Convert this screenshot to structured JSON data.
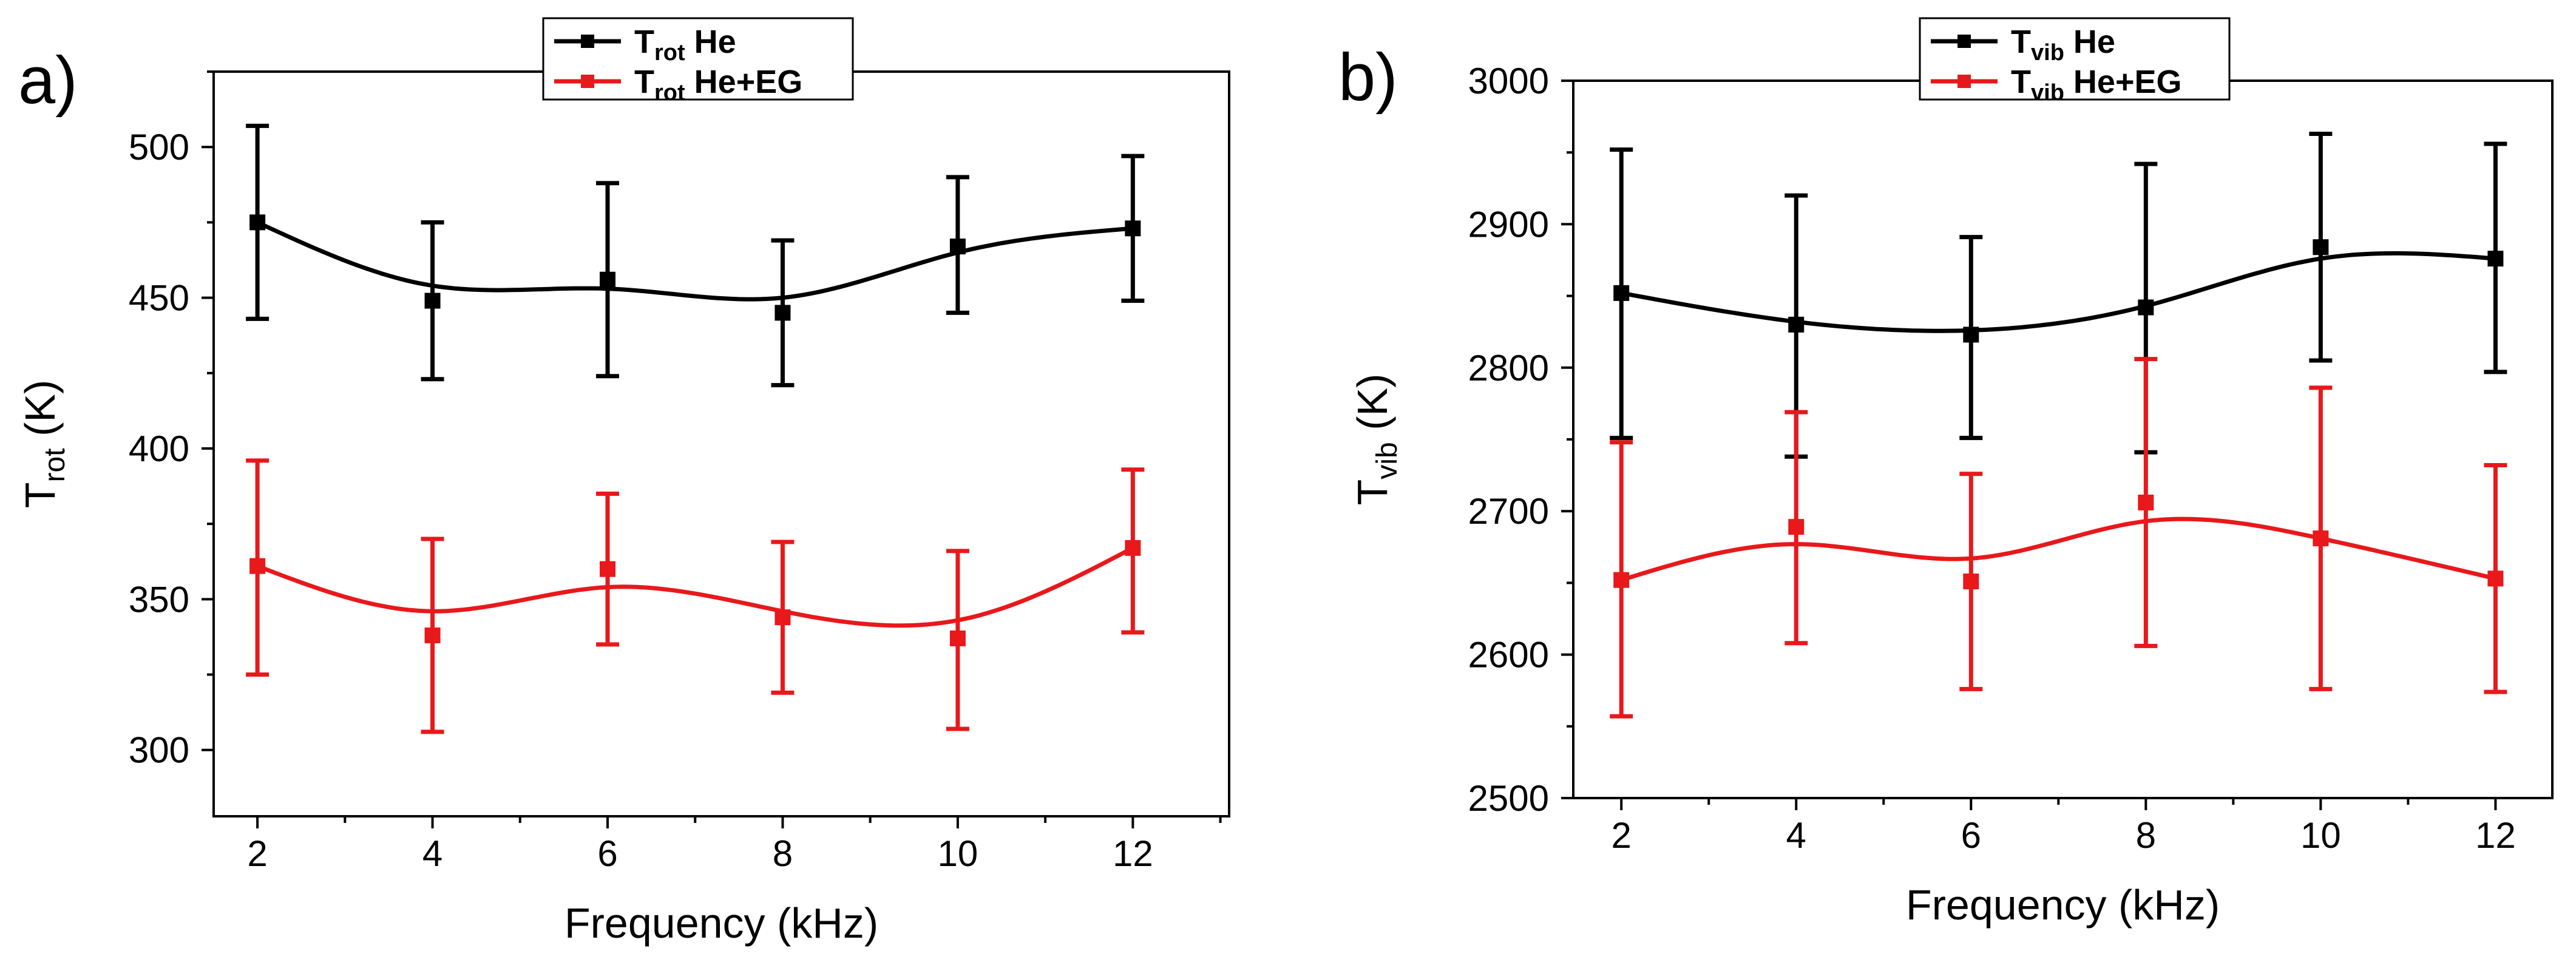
{
  "colors": {
    "series_he": "#000000",
    "series_heeg": "#e8181b",
    "frame": "#000000",
    "background": "#ffffff"
  },
  "chart_data": [
    {
      "panel_label": "a)",
      "type": "line",
      "xlabel": "Frequency (kHz)",
      "ylabel": {
        "main": "T",
        "sub": "rot",
        "tail": " (K)"
      },
      "xlim": [
        1.5,
        13.1
      ],
      "ylim": [
        278,
        525
      ],
      "xticks": [
        2,
        4,
        6,
        8,
        10,
        12
      ],
      "xtick_labels": [
        "2",
        "4",
        "6",
        "8",
        "10",
        "12"
      ],
      "yticks": [
        300,
        350,
        400,
        450,
        500
      ],
      "ytick_labels": [
        "300",
        "350",
        "400",
        "450",
        "500"
      ],
      "legend": {
        "position": "top-center",
        "entries": [
          {
            "main": "T",
            "sub": "rot",
            "tail": " He"
          },
          {
            "main": "T",
            "sub": "rot",
            "tail": " He+EG"
          }
        ]
      },
      "series": [
        {
          "name": "Trot He",
          "x": [
            2,
            4,
            6,
            8,
            10,
            12
          ],
          "values": [
            475,
            449,
            456,
            445,
            467,
            473
          ],
          "err_upper": [
            507,
            475,
            488,
            469,
            490,
            497
          ],
          "err_lower": [
            443,
            423,
            424,
            421,
            445,
            449
          ],
          "smooth": [
            475,
            454,
            453,
            450,
            465,
            473
          ]
        },
        {
          "name": "Trot He+EG",
          "x": [
            2,
            4,
            6,
            8,
            10,
            12
          ],
          "values": [
            361,
            338,
            360,
            344,
            337,
            367
          ],
          "err_upper": [
            396,
            370,
            385,
            369,
            366,
            393
          ],
          "err_lower": [
            325,
            306,
            335,
            319,
            307,
            339
          ],
          "smooth": [
            361,
            346,
            354,
            346,
            343,
            367
          ]
        }
      ]
    },
    {
      "panel_label": "b)",
      "type": "line",
      "xlabel": "Frequency (kHz)",
      "ylabel": {
        "main": "T",
        "sub": "vib",
        "tail": " (K)"
      },
      "xlim": [
        1.45,
        12.65
      ],
      "ylim": [
        2500,
        3000
      ],
      "xticks": [
        2,
        4,
        6,
        8,
        10,
        12
      ],
      "xtick_labels": [
        "2",
        "4",
        "6",
        "8",
        "10",
        "12"
      ],
      "yticks": [
        2500,
        2600,
        2700,
        2800,
        2900,
        3000
      ],
      "ytick_labels": [
        "2500",
        "2600",
        "2700",
        "2800",
        "2900",
        "3000"
      ],
      "legend": {
        "position": "top-center",
        "entries": [
          {
            "main": "T",
            "sub": "vib",
            "tail": " He"
          },
          {
            "main": "T",
            "sub": "vib",
            "tail": " He+EG"
          }
        ]
      },
      "series": [
        {
          "name": "Tvib He",
          "x": [
            2,
            4,
            6,
            8,
            10,
            12
          ],
          "values": [
            2852,
            2830,
            2823,
            2842,
            2884,
            2876
          ],
          "err_upper": [
            2952,
            2920,
            2891,
            2942,
            2963,
            2956
          ],
          "err_lower": [
            2751,
            2738,
            2751,
            2741,
            2805,
            2797
          ],
          "smooth": [
            2852,
            2832,
            2826,
            2843,
            2876,
            2876
          ]
        },
        {
          "name": "Tvib He+EG",
          "x": [
            2,
            4,
            6,
            8,
            10,
            12
          ],
          "values": [
            2652,
            2689,
            2651,
            2706,
            2681,
            2653
          ],
          "err_upper": [
            2748,
            2769,
            2726,
            2806,
            2786,
            2732
          ],
          "err_lower": [
            2557,
            2608,
            2576,
            2606,
            2576,
            2574
          ],
          "smooth": [
            2652,
            2677,
            2667,
            2693,
            2681,
            2653
          ]
        }
      ]
    }
  ]
}
